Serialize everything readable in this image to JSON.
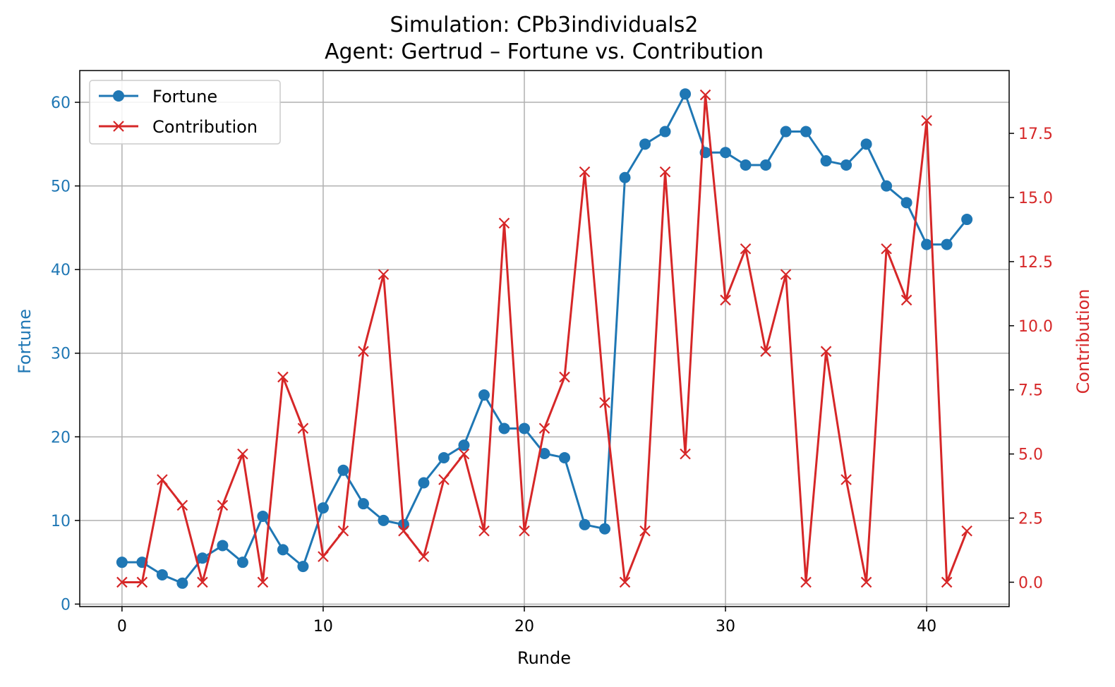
{
  "chart_data": {
    "type": "line",
    "title_line1": "Simulation: CPb3individuals2",
    "title_line2": "Agent: Gertrud – Fortune vs. Contribution",
    "xlabel": "Runde",
    "ylabel_left": "Fortune",
    "ylabel_right": "Contribution",
    "xlim": [
      -2.1,
      44.1
    ],
    "ylim_left": [
      -0.3,
      63.8
    ],
    "ylim_right": [
      -0.95,
      19.95
    ],
    "x_ticks": [
      0,
      10,
      20,
      30,
      40
    ],
    "y_ticks_left": [
      0,
      10,
      20,
      30,
      40,
      50,
      60
    ],
    "y_ticks_right": [
      0.0,
      2.5,
      5.0,
      7.5,
      10.0,
      12.5,
      15.0,
      17.5
    ],
    "x_tick_labels": [
      "0",
      "10",
      "20",
      "30",
      "40"
    ],
    "y_tick_labels_left": [
      "0",
      "10",
      "20",
      "30",
      "40",
      "50",
      "60"
    ],
    "y_tick_labels_right": [
      "0.0",
      "2.5",
      "5.0",
      "7.5",
      "10.0",
      "12.5",
      "15.0",
      "17.5"
    ],
    "grid": true,
    "legend_position": "upper-left",
    "x": [
      0,
      1,
      2,
      3,
      4,
      5,
      6,
      7,
      8,
      9,
      10,
      11,
      12,
      13,
      14,
      15,
      16,
      17,
      18,
      19,
      20,
      21,
      22,
      23,
      24,
      25,
      26,
      27,
      28,
      29,
      30,
      31,
      32,
      33,
      34,
      35,
      36,
      37,
      38,
      39,
      40,
      41,
      42
    ],
    "series": [
      {
        "name": "Fortune",
        "axis": "left",
        "color": "#1f77b4",
        "marker": "circle",
        "values": [
          5,
          5,
          3.5,
          2.5,
          5.5,
          7,
          5,
          10.5,
          6.5,
          4.5,
          11.5,
          16,
          12,
          10,
          9.5,
          14.5,
          17.5,
          19,
          25,
          21,
          21,
          18,
          17.5,
          9.5,
          9,
          51,
          55,
          56.5,
          61,
          54,
          54,
          52.5,
          52.5,
          56.5,
          56.5,
          53,
          52.5,
          55,
          50,
          48,
          43,
          43,
          46
        ]
      },
      {
        "name": "Contribution",
        "axis": "right",
        "color": "#d62728",
        "marker": "x",
        "values": [
          0,
          0,
          4,
          3,
          0,
          3,
          5,
          0,
          8,
          6,
          1,
          2,
          9,
          12,
          2,
          1,
          4,
          5,
          2,
          14,
          2,
          6,
          8,
          16,
          7,
          0,
          2,
          16,
          5,
          19,
          11,
          13,
          9,
          12,
          0,
          9,
          4,
          0,
          13,
          11,
          18,
          0,
          2
        ]
      }
    ]
  }
}
